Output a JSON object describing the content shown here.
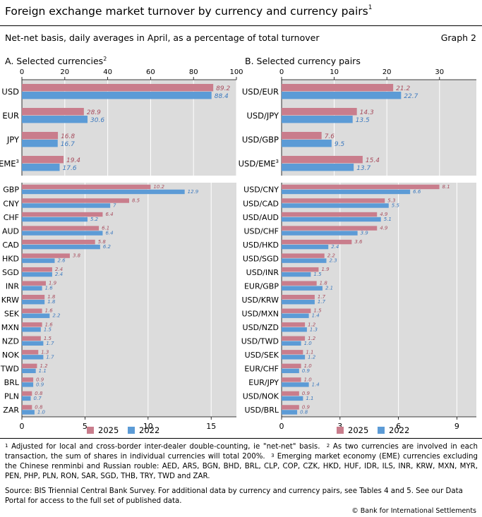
{
  "header": {
    "title": "Foreign exchange market turnover by currency and currency pairs",
    "title_note": "1",
    "subtitle": "Net-net basis, daily averages in April, as a percentage of total turnover",
    "graph_number": "Graph 2"
  },
  "panels": {
    "a": {
      "title": "A. Selected currencies",
      "note": "2"
    },
    "b": {
      "title": "B. Selected currency pairs"
    }
  },
  "legend": {
    "items": [
      "2025",
      "2022"
    ]
  },
  "colors": {
    "series_2025": "#c97d8c",
    "series_2022": "#5c9bd6",
    "label_2025": "#a84d5e",
    "label_2022": "#3d7abf",
    "plot_bg": "#dcdcdc",
    "grid": "#ffffff"
  },
  "chart_data": [
    {
      "id": "currencies_major",
      "type": "bar",
      "orientation": "horizontal",
      "categories": [
        "USD",
        "EUR",
        "JPY",
        "EME"
      ],
      "category_notes": [
        "",
        "",
        "",
        "3"
      ],
      "series": [
        {
          "name": "2025",
          "values": [
            89.2,
            28.9,
            16.8,
            19.4
          ],
          "labels": [
            "89.2",
            "28.9",
            "16.8",
            "19.4"
          ]
        },
        {
          "name": "2022",
          "values": [
            88.4,
            30.6,
            16.7,
            17.6
          ],
          "labels": [
            "88.4",
            "30.6",
            "16.7",
            "17.6"
          ]
        }
      ],
      "xlim": [
        0,
        100
      ],
      "xticks": [
        0,
        20,
        40,
        60,
        80,
        100
      ],
      "xtick_labels": [
        "0",
        "20",
        "40",
        "60",
        "80",
        "100"
      ],
      "axis_position": "top"
    },
    {
      "id": "currencies_other",
      "type": "bar",
      "orientation": "horizontal",
      "categories": [
        "GBP",
        "CNY",
        "CHF",
        "AUD",
        "CAD",
        "HKD",
        "SGD",
        "INR",
        "KRW",
        "SEK",
        "MXN",
        "NZD",
        "NOK",
        "TWD",
        "BRL",
        "PLN",
        "ZAR"
      ],
      "series": [
        {
          "name": "2025",
          "values": [
            10.2,
            8.5,
            6.4,
            6.1,
            5.8,
            3.8,
            2.4,
            1.9,
            1.8,
            1.6,
            1.6,
            1.5,
            1.3,
            1.2,
            0.9,
            0.8,
            0.8
          ],
          "labels": [
            "10.2",
            "8.5",
            "6.4",
            "6.1",
            "5.8",
            "3.8",
            "2.4",
            "1.9",
            "1.8",
            "1.6",
            "1.6",
            "1.5",
            "1.3",
            "1.2",
            "0.9",
            "0.8",
            "0.8"
          ]
        },
        {
          "name": "2022",
          "values": [
            12.9,
            7.0,
            5.2,
            6.4,
            6.2,
            2.6,
            2.4,
            1.6,
            1.8,
            2.2,
            1.5,
            1.7,
            1.7,
            1.1,
            0.9,
            0.7,
            1.0
          ],
          "labels": [
            "12.9",
            "7",
            "5.2",
            "6.4",
            "6.2",
            "2.6",
            "2.4",
            "1.6",
            "1.8",
            "2.2",
            "1.5",
            "1.7",
            "1.7",
            "1.1",
            "0.9",
            "0.7",
            "1.0"
          ]
        }
      ],
      "xlim": [
        0,
        17
      ],
      "xticks": [
        0,
        5,
        10,
        15
      ],
      "xtick_labels": [
        "0",
        "5",
        "10",
        "15"
      ],
      "axis_position": "bottom"
    },
    {
      "id": "pairs_major",
      "type": "bar",
      "orientation": "horizontal",
      "categories": [
        "USD/EUR",
        "USD/JPY",
        "USD/GBP",
        "USD/EME"
      ],
      "category_notes": [
        "",
        "",
        "",
        "3"
      ],
      "series": [
        {
          "name": "2025",
          "values": [
            21.2,
            14.3,
            7.6,
            15.4
          ],
          "labels": [
            "21.2",
            "14.3",
            "7.6",
            "15.4"
          ]
        },
        {
          "name": "2022",
          "values": [
            22.7,
            13.5,
            9.5,
            13.7
          ],
          "labels": [
            "22.7",
            "13.5",
            "9.5",
            "13.7"
          ]
        }
      ],
      "xlim": [
        0,
        37
      ],
      "xticks": [
        0,
        10,
        20,
        30
      ],
      "xtick_labels": [
        "0",
        "10",
        "20",
        "30"
      ],
      "axis_position": "top"
    },
    {
      "id": "pairs_other",
      "type": "bar",
      "orientation": "horizontal",
      "categories": [
        "USD/CNY",
        "USD/CAD",
        "USD/AUD",
        "USD/CHF",
        "USD/HKD",
        "USD/SGD",
        "USD/INR",
        "EUR/GBP",
        "USD/KRW",
        "USD/MXN",
        "USD/NZD",
        "USD/TWD",
        "USD/SEK",
        "EUR/CHF",
        "EUR/JPY",
        "USD/NOK",
        "USD/BRL"
      ],
      "series": [
        {
          "name": "2025",
          "values": [
            8.1,
            5.3,
            4.9,
            4.9,
            3.6,
            2.2,
            1.9,
            1.8,
            1.7,
            1.5,
            1.2,
            1.2,
            1.1,
            1.0,
            1.0,
            0.9,
            0.9
          ],
          "labels": [
            "8.1",
            "5.3",
            "4.9",
            "4.9",
            "3.6",
            "2.2",
            "1.9",
            "1.8",
            "1.7",
            "1.5",
            "1.2",
            "1.2",
            "1.1",
            "1.0",
            "1.0",
            "0.9",
            "0.9"
          ]
        },
        {
          "name": "2022",
          "values": [
            6.6,
            5.5,
            5.1,
            3.9,
            2.4,
            2.3,
            1.5,
            2.1,
            1.7,
            1.4,
            1.3,
            1.0,
            1.2,
            0.9,
            1.4,
            1.1,
            0.8
          ],
          "labels": [
            "6.6",
            "5.5",
            "5.1",
            "3.9",
            "2.4",
            "2.3",
            "1.5",
            "2.1",
            "1.7",
            "1.4",
            "1.3",
            "1.0",
            "1.2",
            "0.9",
            "1.4",
            "1.1",
            "0.8"
          ]
        }
      ],
      "xlim": [
        0,
        10
      ],
      "xticks": [
        0,
        3,
        6,
        9
      ],
      "xtick_labels": [
        "0",
        "3",
        "6",
        "9"
      ],
      "axis_position": "bottom"
    }
  ],
  "footnotes": {
    "note1_mark": "1",
    "note1_text": "Adjusted for local and cross-border inter-dealer double-counting, ie \"net-net\" basis.",
    "note2_mark": "2",
    "note2_text": "As two currencies are involved in each transaction, the sum of shares in individual currencies will total 200%.",
    "note3_mark": "3",
    "note3_text": "Emerging market economy (EME) currencies excluding the Chinese renminbi and Russian rouble: AED, ARS, BGN, BHD, BRL, CLP, COP, CZK, HKD, HUF, IDR, ILS, INR, KRW, MXN, MYR, PEN, PHP, PLN, RON, SAR, SGD, THB, TRY, TWD and ZAR."
  },
  "source": "Source: BIS Triennial Central Bank Survey. For additional data by currency and currency pairs, see Tables 4 and 5. See our Data Portal for access to the full set of published data.",
  "copyright": "© Bank for International Settlements"
}
